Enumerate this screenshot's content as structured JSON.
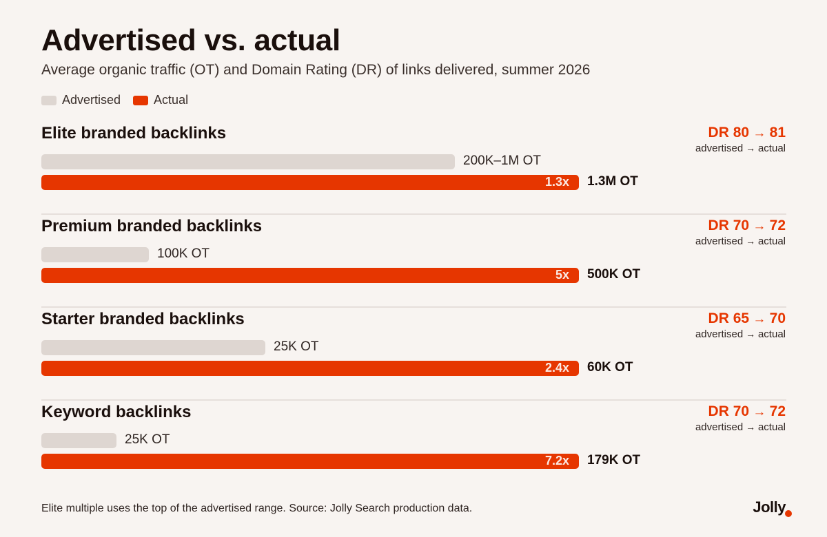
{
  "colors": {
    "advertised": "#ded6d1",
    "actual": "#e63600",
    "accent": "#e63600"
  },
  "chart_data": {
    "type": "bar",
    "title": "Advertised vs. actual",
    "subtitle": "Average organic traffic (OT) and Domain Rating (DR) of links delivered, summer 2026",
    "legend": [
      "Advertised",
      "Actual"
    ],
    "legend_placement": "top-left",
    "series": [
      {
        "name": "Advertised",
        "values": [
          1000000,
          260000,
          541000,
          181000
        ]
      },
      {
        "name": "Actual",
        "values": [
          1300000,
          1300000,
          1300000,
          1300000
        ]
      }
    ],
    "groups": [
      {
        "name": "Elite branded backlinks",
        "advertised_label": "200K–1M OT",
        "actual_label": "1.3M OT",
        "multiple": "1.3x",
        "advertised_fraction": 0.769,
        "dr": {
          "prefix": "DR",
          "advertised": "80",
          "actual": "81"
        }
      },
      {
        "name": "Premium branded backlinks",
        "advertised_label": "100K OT",
        "actual_label": "500K OT",
        "multiple": "5x",
        "advertised_fraction": 0.2,
        "dr": {
          "prefix": "DR",
          "advertised": "70",
          "actual": "72"
        }
      },
      {
        "name": "Starter branded backlinks",
        "advertised_label": "25K OT",
        "actual_label": "60K OT",
        "multiple": "2.4x",
        "advertised_fraction": 0.417,
        "dr": {
          "prefix": "DR",
          "advertised": "65",
          "actual": "70"
        }
      },
      {
        "name": "Keyword backlinks",
        "advertised_label": "25K OT",
        "actual_label": "179K OT",
        "multiple": "7.2x",
        "advertised_fraction": 0.14,
        "dr": {
          "prefix": "DR",
          "advertised": "70",
          "actual": "72"
        }
      }
    ],
    "dr_caption": {
      "left": "advertised",
      "arrow": "→",
      "right": "actual"
    }
  },
  "footnote": "Elite multiple uses the top of the advertised range. Source: Jolly Search production data.",
  "brand": "Jolly"
}
